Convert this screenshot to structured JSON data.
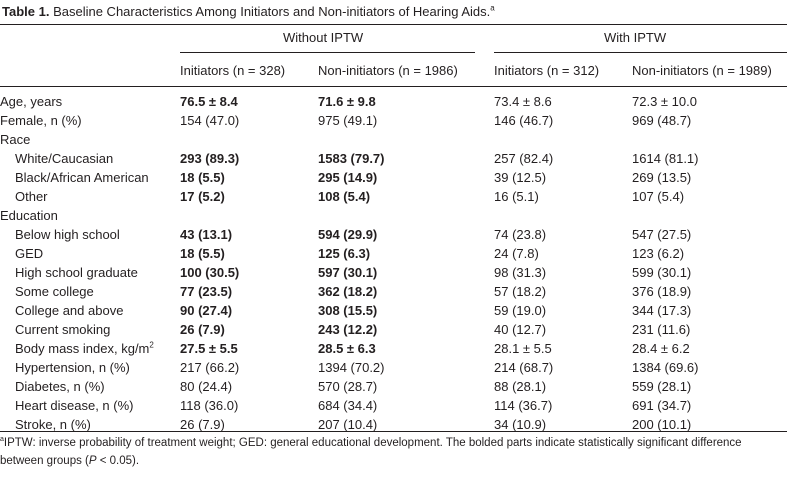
{
  "caption": {
    "label": "Table 1.",
    "text": "Baseline Characteristics Among Initiators and Non-initiators of Hearing Aids.",
    "marker": "a"
  },
  "groups": [
    "Without IPTW",
    "With IPTW"
  ],
  "columns": [
    "Initiators (n = 328)",
    "Non-initiators (n = 1986)",
    "Initiators (n = 312)",
    "Non-initiators (n = 1989)"
  ],
  "rows": [
    {
      "label": "Age, years",
      "indent": false,
      "values": [
        "76.5 ± 8.4",
        "71.6 ± 9.8",
        "73.4 ± 8.6",
        "72.3 ± 10.0"
      ],
      "bold": [
        true,
        true,
        false,
        false
      ]
    },
    {
      "label": "Female, n (%)",
      "indent": false,
      "values": [
        "154 (47.0)",
        "975 (49.1)",
        "146 (46.7)",
        "969 (48.7)"
      ],
      "bold": [
        false,
        false,
        false,
        false
      ]
    },
    {
      "label": "Race",
      "indent": false,
      "values": [
        "",
        "",
        "",
        ""
      ],
      "bold": [
        false,
        false,
        false,
        false
      ]
    },
    {
      "label": "White/Caucasian",
      "indent": true,
      "values": [
        "293 (89.3)",
        "1583 (79.7)",
        "257 (82.4)",
        "1614 (81.1)"
      ],
      "bold": [
        true,
        true,
        false,
        false
      ]
    },
    {
      "label": "Black/African American",
      "indent": true,
      "values": [
        "18 (5.5)",
        "295 (14.9)",
        "39 (12.5)",
        "269 (13.5)"
      ],
      "bold": [
        true,
        true,
        false,
        false
      ]
    },
    {
      "label": "Other",
      "indent": true,
      "values": [
        "17 (5.2)",
        "108 (5.4)",
        "16 (5.1)",
        "107 (5.4)"
      ],
      "bold": [
        true,
        true,
        false,
        false
      ]
    },
    {
      "label": "Education",
      "indent": false,
      "values": [
        "",
        "",
        "",
        ""
      ],
      "bold": [
        false,
        false,
        false,
        false
      ]
    },
    {
      "label": "Below high school",
      "indent": true,
      "values": [
        "43 (13.1)",
        "594 (29.9)",
        "74 (23.8)",
        "547 (27.5)"
      ],
      "bold": [
        true,
        true,
        false,
        false
      ]
    },
    {
      "label": "GED",
      "indent": true,
      "values": [
        "18 (5.5)",
        "125 (6.3)",
        "24 (7.8)",
        "123 (6.2)"
      ],
      "bold": [
        true,
        true,
        false,
        false
      ]
    },
    {
      "label": "High school graduate",
      "indent": true,
      "values": [
        "100 (30.5)",
        "597 (30.1)",
        "98 (31.3)",
        "599 (30.1)"
      ],
      "bold": [
        true,
        true,
        false,
        false
      ]
    },
    {
      "label": "Some college",
      "indent": true,
      "values": [
        "77 (23.5)",
        "362 (18.2)",
        "57 (18.2)",
        "376 (18.9)"
      ],
      "bold": [
        true,
        true,
        false,
        false
      ]
    },
    {
      "label": "College and above",
      "indent": true,
      "values": [
        "90 (27.4)",
        "308 (15.5)",
        "59 (19.0)",
        "344 (17.3)"
      ],
      "bold": [
        true,
        true,
        false,
        false
      ]
    },
    {
      "label": "Current smoking",
      "indent": true,
      "values": [
        "26 (7.9)",
        "243 (12.2)",
        "40 (12.7)",
        "231 (11.6)"
      ],
      "bold": [
        true,
        true,
        false,
        false
      ]
    },
    {
      "label": "Body mass index, kg/m",
      "sup": "2",
      "indent": true,
      "values": [
        "27.5 ± 5.5",
        "28.5 ± 6.3",
        "28.1 ± 5.5",
        "28.4 ± 6.2"
      ],
      "bold": [
        true,
        true,
        false,
        false
      ]
    },
    {
      "label": "Hypertension, n (%)",
      "indent": true,
      "values": [
        "217 (66.2)",
        "1394 (70.2)",
        "214 (68.7)",
        "1384 (69.6)"
      ],
      "bold": [
        false,
        false,
        false,
        false
      ]
    },
    {
      "label": "Diabetes, n (%)",
      "indent": true,
      "values": [
        "80 (24.4)",
        "570 (28.7)",
        "88 (28.1)",
        "559 (28.1)"
      ],
      "bold": [
        false,
        false,
        false,
        false
      ]
    },
    {
      "label": "Heart disease, n (%)",
      "indent": true,
      "values": [
        "118 (36.0)",
        "684 (34.4)",
        "114 (36.7)",
        "691 (34.7)"
      ],
      "bold": [
        false,
        false,
        false,
        false
      ]
    },
    {
      "label": "Stroke, n (%)",
      "indent": true,
      "values": [
        "26 (7.9)",
        "207 (10.4)",
        "34 (10.9)",
        "200 (10.1)"
      ],
      "bold": [
        false,
        false,
        false,
        false
      ]
    }
  ],
  "footnote": {
    "marker": "a",
    "text_before_p": "IPTW: inverse probability of treatment weight; GED: general educational development. The bolded parts indicate statistically significant difference between groups (",
    "p_symbol": "P",
    "text_after_p": " < 0.05)."
  }
}
